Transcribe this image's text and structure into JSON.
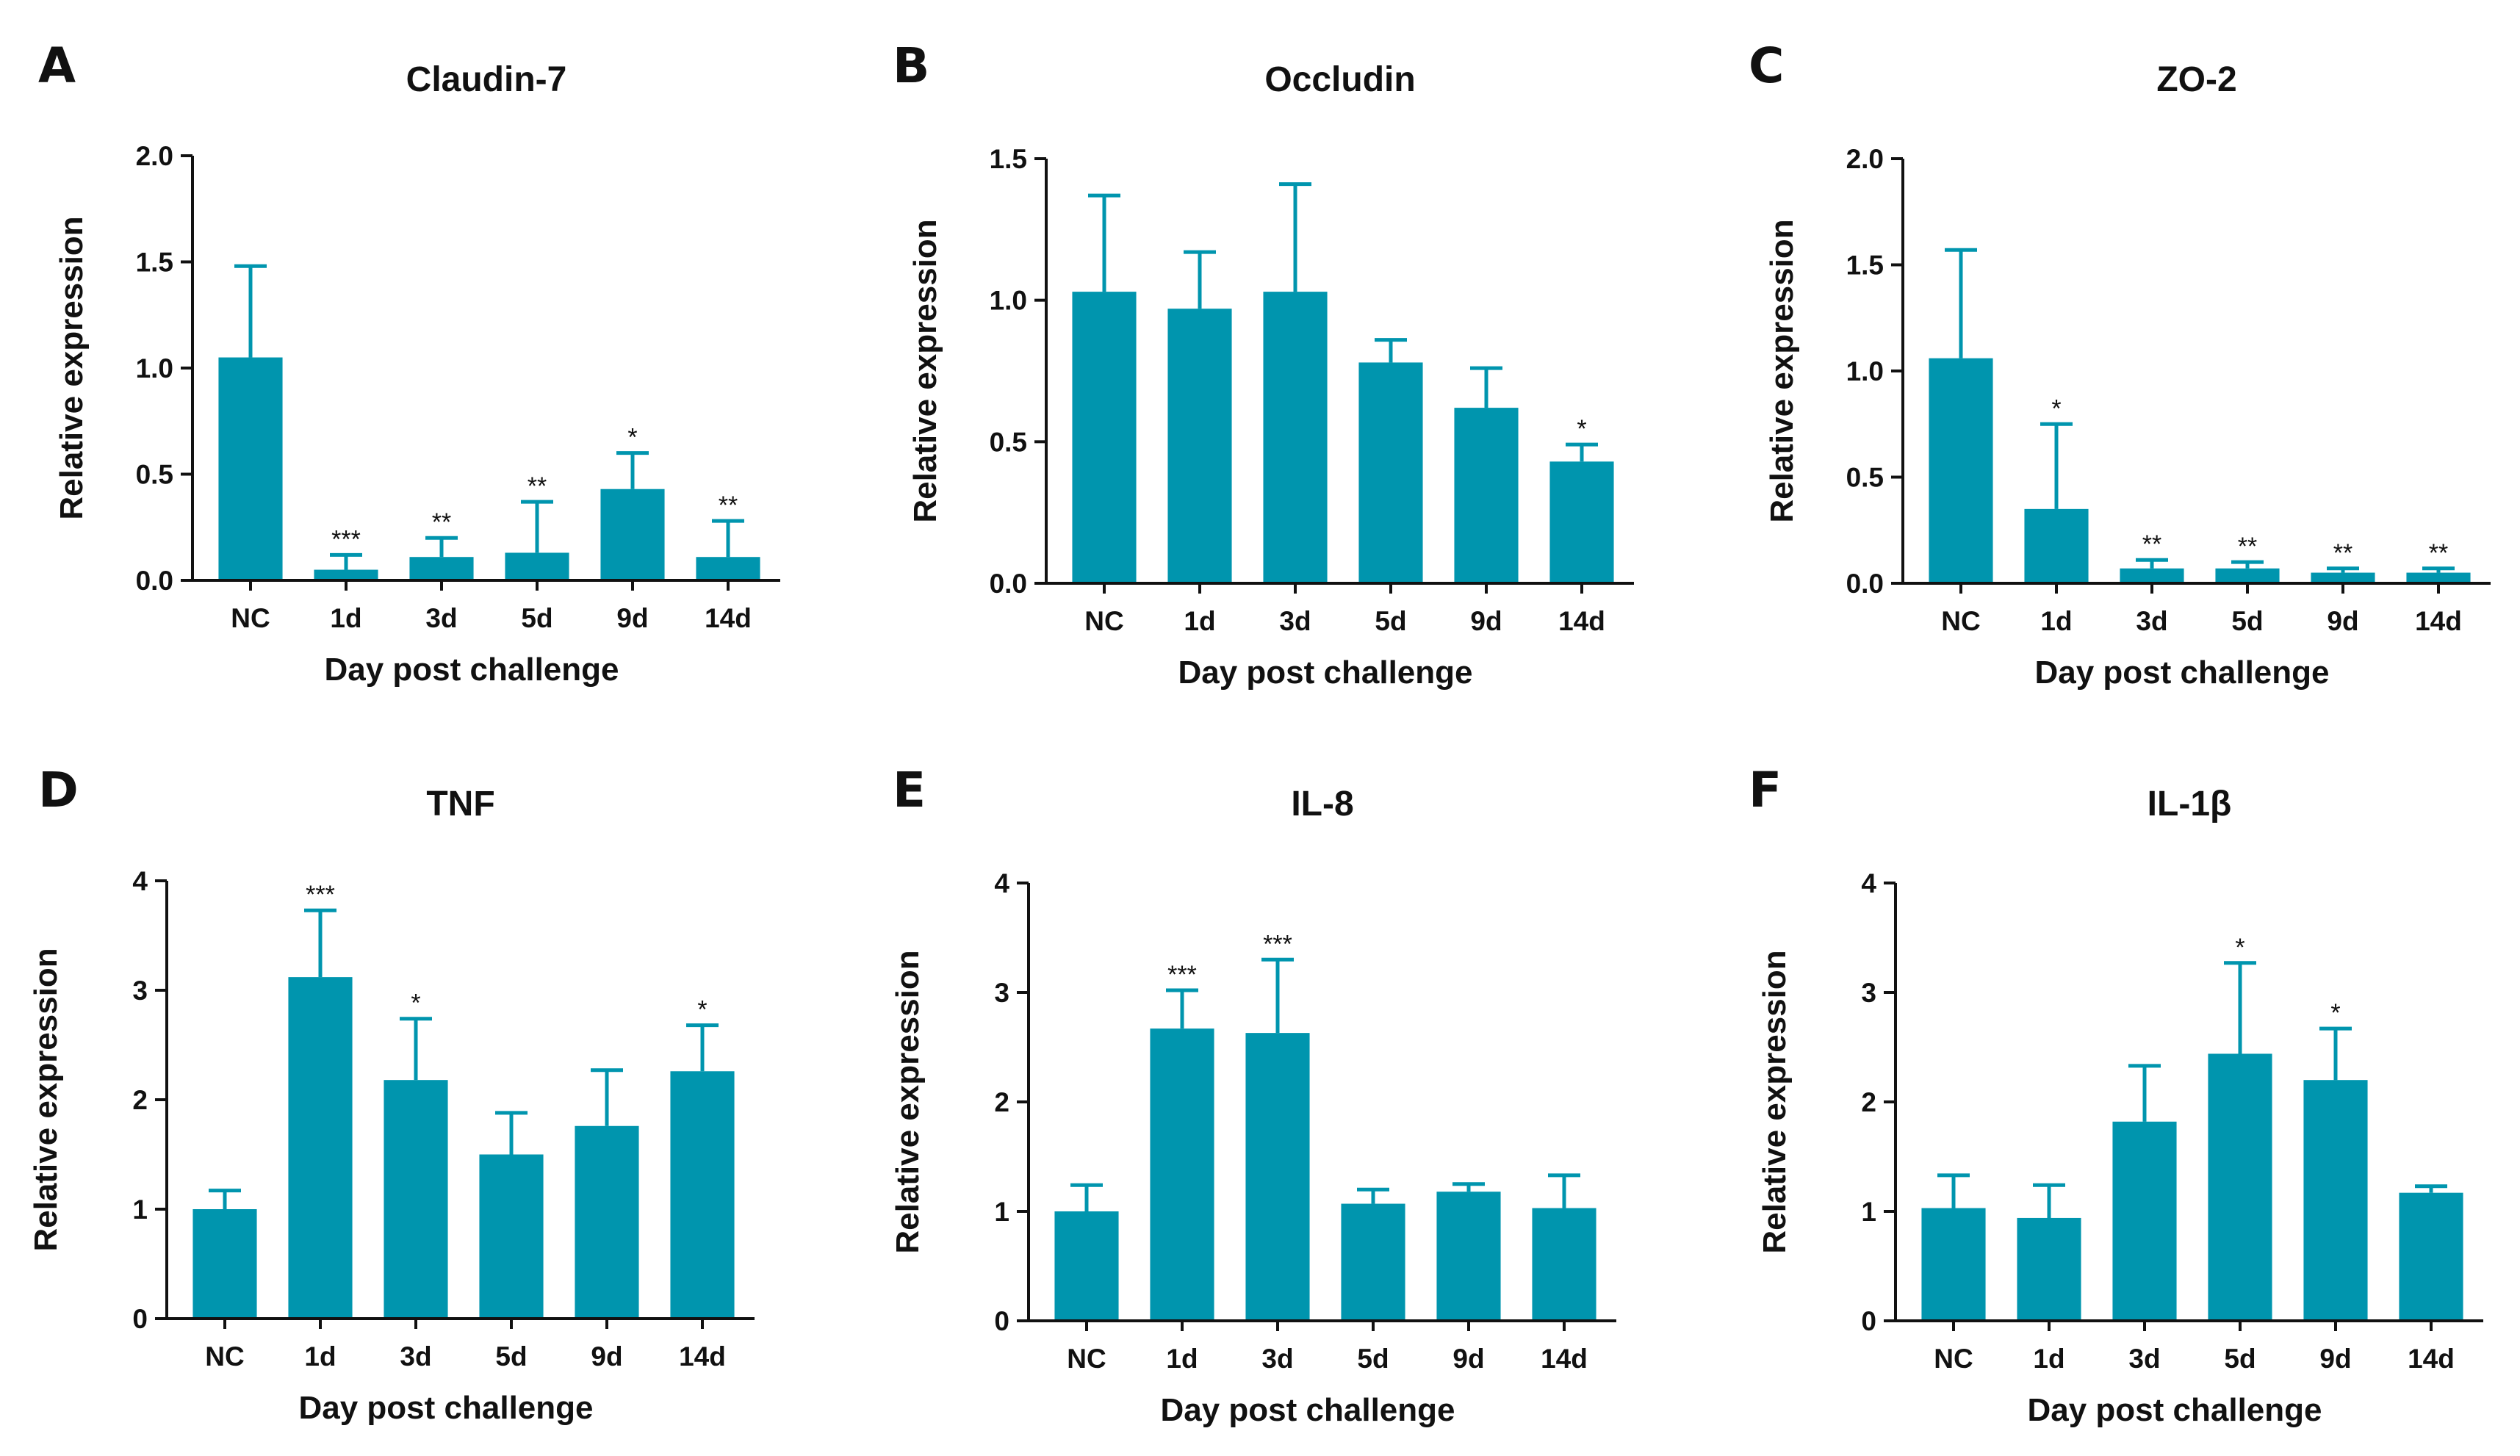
{
  "figure": {
    "bar_color": "#0095AE",
    "axis_color": "#111111"
  },
  "chart_data": [
    {
      "panel": "A",
      "type": "bar",
      "title": "Claudin-7",
      "xlabel": "Day post challenge",
      "ylabel": "Relative expression",
      "categories": [
        "NC",
        "1d",
        "3d",
        "5d",
        "9d",
        "14d"
      ],
      "values": [
        1.05,
        0.05,
        0.11,
        0.13,
        0.43,
        0.11
      ],
      "error_upper": [
        1.48,
        0.12,
        0.2,
        0.37,
        0.6,
        0.28
      ],
      "significance": [
        "",
        "***",
        "**",
        "**",
        "*",
        "**"
      ],
      "ylim": [
        0,
        2.0
      ],
      "yticks": [
        "0.0",
        "0.5",
        "1.0",
        "1.5",
        "2.0"
      ]
    },
    {
      "panel": "B",
      "type": "bar",
      "title": "Occludin",
      "xlabel": "Day post challenge",
      "ylabel": "Relative expression",
      "categories": [
        "NC",
        "1d",
        "3d",
        "5d",
        "9d",
        "14d"
      ],
      "values": [
        1.03,
        0.97,
        1.03,
        0.78,
        0.62,
        0.43
      ],
      "error_upper": [
        1.37,
        1.17,
        1.41,
        0.86,
        0.76,
        0.49
      ],
      "significance": [
        "",
        "",
        "",
        "",
        "",
        "*"
      ],
      "ylim": [
        0,
        1.5
      ],
      "yticks": [
        "0.0",
        "0.5",
        "1.0",
        "1.5"
      ]
    },
    {
      "panel": "C",
      "type": "bar",
      "title": "ZO-2",
      "xlabel": "Day post challenge",
      "ylabel": "Relative expression",
      "categories": [
        "NC",
        "1d",
        "3d",
        "5d",
        "9d",
        "14d"
      ],
      "values": [
        1.06,
        0.35,
        0.07,
        0.07,
        0.05,
        0.05
      ],
      "error_upper": [
        1.57,
        0.75,
        0.11,
        0.1,
        0.07,
        0.07
      ],
      "significance": [
        "",
        "*",
        "**",
        "**",
        "**",
        "**"
      ],
      "ylim": [
        0,
        2.0
      ],
      "yticks": [
        "0.0",
        "0.5",
        "1.0",
        "1.5",
        "2.0"
      ]
    },
    {
      "panel": "D",
      "type": "bar",
      "title": "TNF",
      "xlabel": "Day post challenge",
      "ylabel": "Relative expression",
      "categories": [
        "NC",
        "1d",
        "3d",
        "5d",
        "9d",
        "14d"
      ],
      "values": [
        1.0,
        3.12,
        2.18,
        1.5,
        1.76,
        2.26
      ],
      "error_upper": [
        1.17,
        3.73,
        2.74,
        1.88,
        2.27,
        2.68
      ],
      "significance": [
        "",
        "***",
        "*",
        "",
        "",
        "*"
      ],
      "ylim": [
        0,
        4
      ],
      "yticks": [
        "0",
        "1",
        "2",
        "3",
        "4"
      ]
    },
    {
      "panel": "E",
      "type": "bar",
      "title": "IL-8",
      "xlabel": "Day post challenge",
      "ylabel": "Relative expression",
      "categories": [
        "NC",
        "1d",
        "3d",
        "5d",
        "9d",
        "14d"
      ],
      "values": [
        1.0,
        2.67,
        2.63,
        1.07,
        1.18,
        1.03
      ],
      "error_upper": [
        1.24,
        3.02,
        3.3,
        1.2,
        1.25,
        1.33
      ],
      "significance": [
        "",
        "***",
        "***",
        "",
        "",
        ""
      ],
      "ylim": [
        0,
        4
      ],
      "yticks": [
        "0",
        "1",
        "2",
        "3",
        "4"
      ]
    },
    {
      "panel": "F",
      "type": "bar",
      "title": "IL-1β",
      "xlabel": "Day post challenge",
      "ylabel": "Relative expression",
      "categories": [
        "NC",
        "1d",
        "3d",
        "5d",
        "9d",
        "14d"
      ],
      "values": [
        1.03,
        0.94,
        1.82,
        2.44,
        2.2,
        1.17
      ],
      "error_upper": [
        1.33,
        1.24,
        2.33,
        3.27,
        2.67,
        1.23
      ],
      "significance": [
        "",
        "",
        "",
        "*",
        "*",
        ""
      ],
      "ylim": [
        0,
        4
      ],
      "yticks": [
        "0",
        "1",
        "2",
        "3",
        "4"
      ]
    }
  ]
}
